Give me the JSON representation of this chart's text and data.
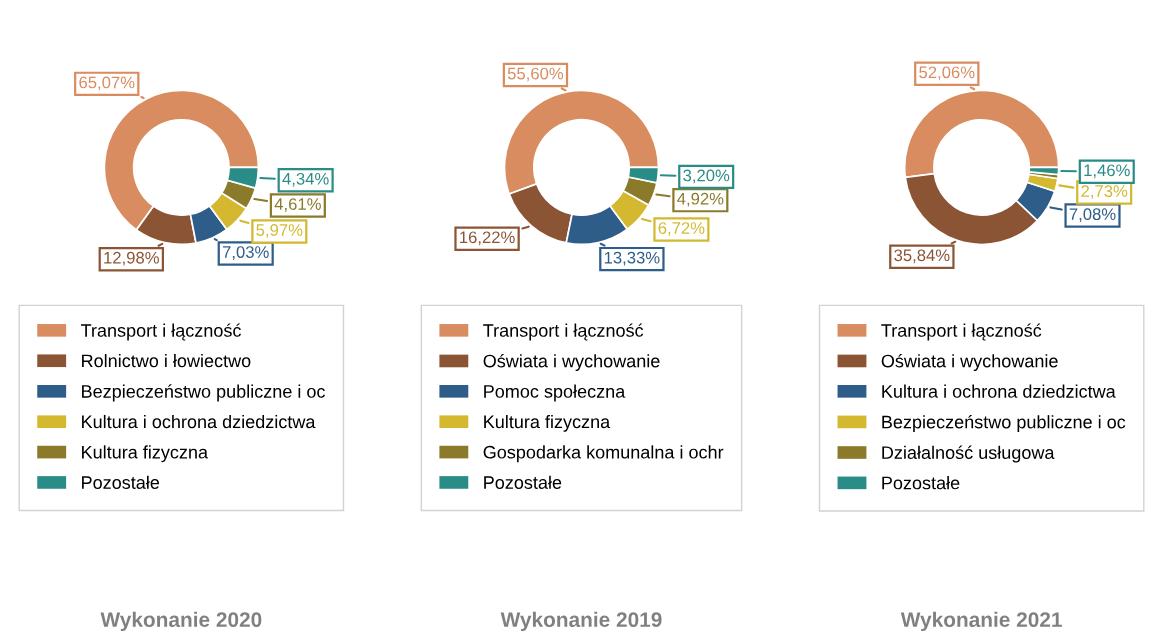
{
  "chart_data": [
    {
      "type": "donut",
      "title": "Wykonanie 2020",
      "legend": "bottom",
      "categories": [
        "Transport i łączność",
        "Rolnictwo i łowiectwo",
        "Bezpieczeństwo publiczne i oc",
        "Kultura i ochrona dziedzictwa",
        "Kultura fizyczna",
        "Pozostałe"
      ],
      "values": [
        65.07,
        12.98,
        7.03,
        5.97,
        4.61,
        4.34
      ],
      "value_labels": [
        "65,07%",
        "12,98%",
        "7,03%",
        "5,97%",
        "4,61%",
        "4,34%"
      ],
      "colors": [
        "#d88c5f",
        "#8b5535",
        "#2e5d8a",
        "#d4b830",
        "#8a7a2a",
        "#2a8c86"
      ]
    },
    {
      "type": "donut",
      "title": "Wykonanie 2019",
      "legend": "bottom",
      "categories": [
        "Transport i łączność",
        "Oświata i wychowanie",
        "Pomoc społeczna",
        "Kultura fizyczna",
        "Gospodarka komunalna i ochr",
        "Pozostałe"
      ],
      "values": [
        55.6,
        16.22,
        13.33,
        6.72,
        4.92,
        3.2
      ],
      "value_labels": [
        "55,60%",
        "16,22%",
        "13,33%",
        "6,72%",
        "4,92%",
        "3,20%"
      ],
      "colors": [
        "#d88c5f",
        "#8b5535",
        "#2e5d8a",
        "#d4b830",
        "#8a7a2a",
        "#2a8c86"
      ]
    },
    {
      "type": "donut",
      "title": "Wykonanie 2021",
      "legend": "bottom",
      "categories": [
        "Transport i łączność",
        "Oświata i wychowanie",
        "Kultura i ochrona dziedzictwa",
        "Bezpieczeństwo publiczne i oc",
        "Działalność usługowa",
        "Pozostałe"
      ],
      "values": [
        52.06,
        35.84,
        7.08,
        2.73,
        0.83,
        1.46
      ],
      "value_labels": [
        "52,06%",
        "35,84%",
        "7,08%",
        "2,73%",
        null,
        "1,46%"
      ],
      "colors": [
        "#d88c5f",
        "#8b5535",
        "#2e5d8a",
        "#d4b830",
        "#8a7a2a",
        "#2a8c86"
      ]
    }
  ]
}
